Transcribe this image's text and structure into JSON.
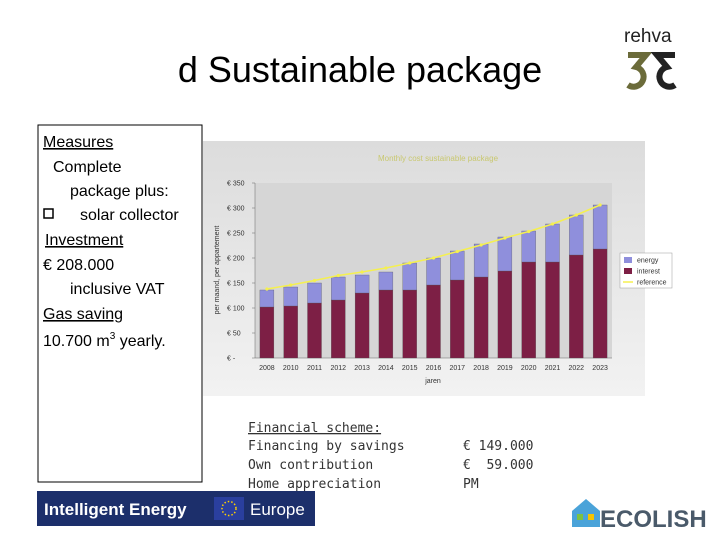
{
  "title": "d Sustainable package",
  "left_box": {
    "measures": "Measures",
    "complete": "Complete",
    "package_plus": "package plus:",
    "solar": "solar collector",
    "investment": "Investment",
    "amount": "€ 208.000",
    "vat": "inclusive VAT",
    "gas": "Gas saving",
    "gas_amount": "10.700 m",
    "gas_power": "3",
    "gas_suffix": " yearly."
  },
  "chart_data": {
    "type": "bar",
    "stacked": true,
    "title": "Monthly cost sustainable package",
    "ylabel": "per maand, per appartement",
    "xlabel": "jaren",
    "categories": [
      "2008",
      "2010",
      "2011",
      "2012",
      "2013",
      "2014",
      "2015",
      "2016",
      "2017",
      "2018",
      "2019",
      "2020",
      "2021",
      "2022",
      "2023"
    ],
    "series": [
      {
        "name": "interest",
        "color": "#7d1f45",
        "values": [
          102,
          104,
          110,
          116,
          130,
          136,
          136,
          146,
          156,
          162,
          174,
          192,
          192,
          206,
          218
        ]
      },
      {
        "name": "energy",
        "color": "#8f8fdc",
        "values": [
          34,
          38,
          40,
          46,
          36,
          36,
          54,
          54,
          58,
          66,
          68,
          62,
          76,
          80,
          88
        ]
      },
      {
        "name": "reference",
        "type": "line",
        "color": "#f5f050",
        "values": [
          138,
          146,
          155,
          165,
          172,
          180,
          190,
          200,
          213,
          226,
          240,
          253,
          268,
          286,
          306
        ]
      }
    ],
    "ylim": [
      0,
      350
    ],
    "yticks": [
      {
        "value": 0,
        "label": "€ -"
      },
      {
        "value": 50,
        "label": "€ 50"
      },
      {
        "value": 100,
        "label": "€ 100"
      },
      {
        "value": 150,
        "label": "€ 150"
      },
      {
        "value": 200,
        "label": "€ 200"
      },
      {
        "value": 250,
        "label": "€ 250"
      },
      {
        "value": 300,
        "label": "€ 300"
      },
      {
        "value": 350,
        "label": "€ 350"
      }
    ],
    "grid": false,
    "legend": "right"
  },
  "financial": {
    "heading": "Financial scheme:",
    "rows": [
      [
        "Financing by savings",
        "€ 149.000"
      ],
      [
        "Own contribution",
        "€  59.000"
      ],
      [
        "Home appreciation",
        "PM"
      ]
    ]
  },
  "logos": {
    "rehva": "rehva",
    "iee": "Intelligent Energy",
    "europe": "Europe",
    "ecolish": "ECOLISH"
  }
}
